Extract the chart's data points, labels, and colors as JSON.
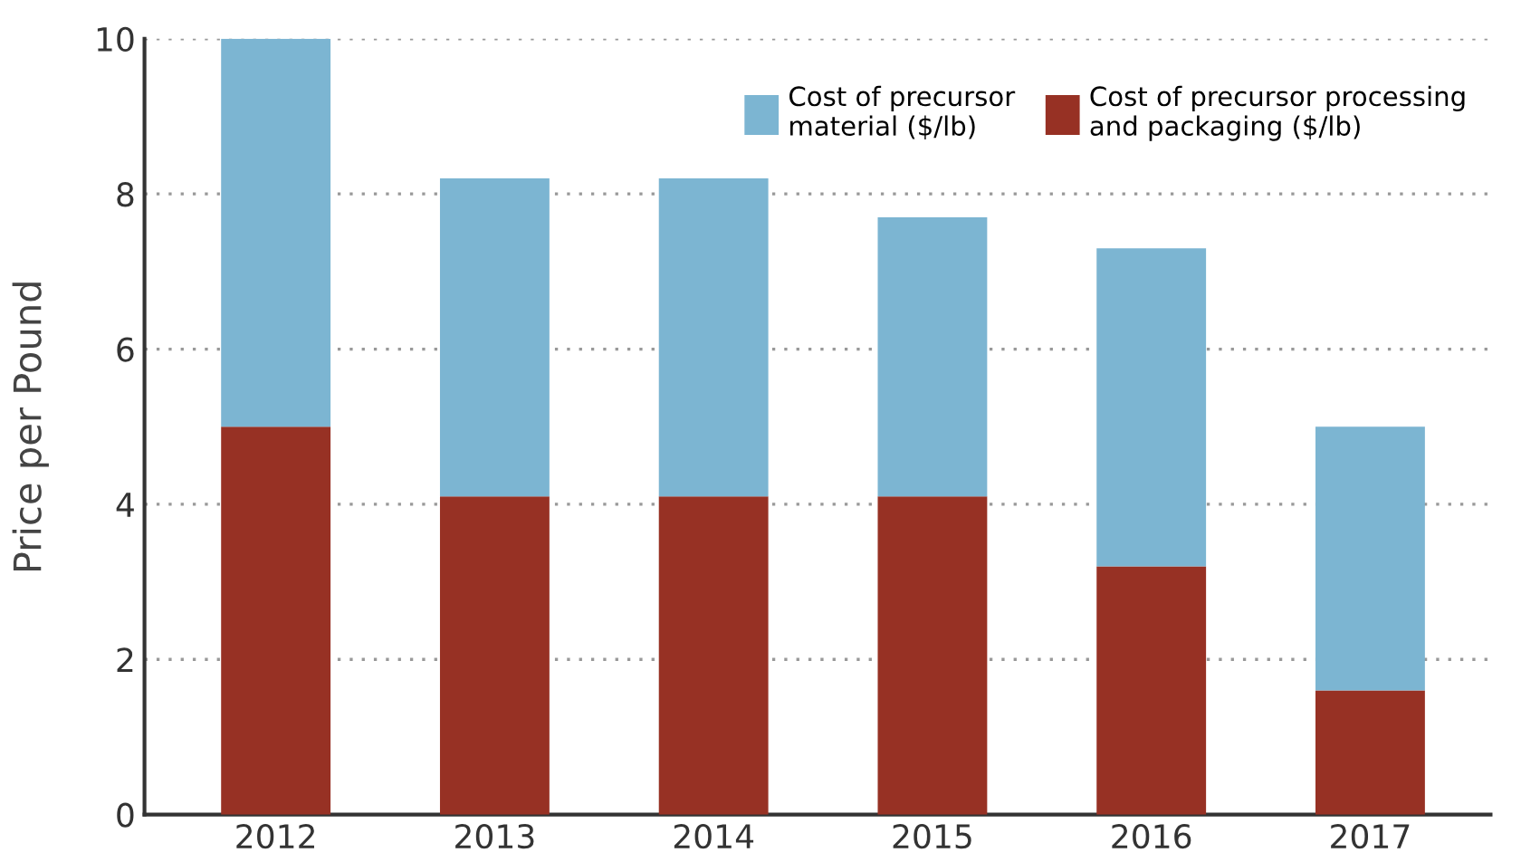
{
  "chart_data": {
    "type": "bar",
    "stacked": true,
    "ylabel": "Price per Pound",
    "categories": [
      "2012",
      "2013",
      "2014",
      "2015",
      "2016",
      "2017"
    ],
    "series": [
      {
        "name": "Cost of precursor processing\nand packaging ($/lb)",
        "color": "#973124",
        "values": [
          5.0,
          4.1,
          4.1,
          4.1,
          3.2,
          1.6
        ]
      },
      {
        "name": "Cost of precursor\nmaterial ($/lb)",
        "color": "#7cb5d2",
        "values": [
          5.0,
          4.1,
          4.1,
          3.6,
          4.1,
          3.4
        ]
      }
    ],
    "ylim": [
      0,
      10
    ],
    "yticks": [
      0,
      2,
      4,
      6,
      8,
      10
    ],
    "grid": "y",
    "legend": "top right"
  }
}
